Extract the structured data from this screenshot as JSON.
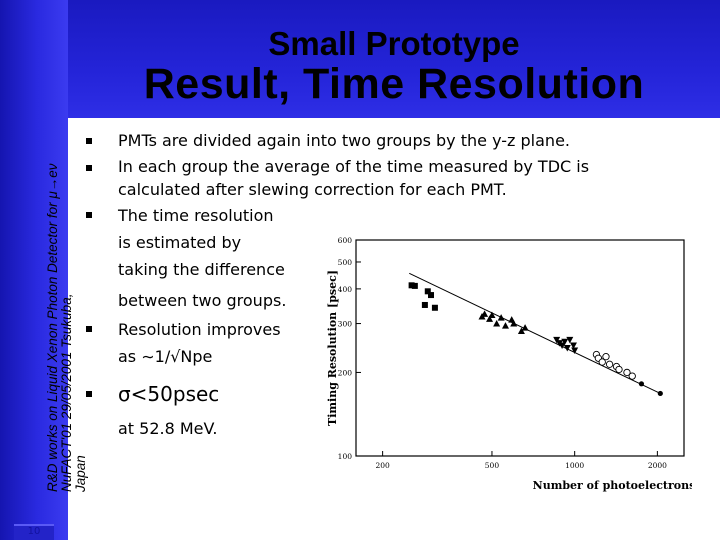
{
  "sidebar": {
    "footer_text": "R&D works on Liquid Xenon Photon Detector for μ→eν\nNuFACT'01  29/05/2001 Tsukuba,\nJapan",
    "page_number": "10"
  },
  "header": {
    "title_line1": "Small Prototype",
    "title_line2": "Result, Time Resolution"
  },
  "bullets": [
    {
      "lines": [
        "PMTs are divided again into two groups by the y-z plane."
      ]
    },
    {
      "lines": [
        "In each group the average of the time measured by TDC is",
        "calculated after slewing correction for each PMT."
      ]
    },
    {
      "lines": [
        "The time resolution",
        "is estimated by",
        "taking the difference",
        "between two groups."
      ]
    },
    {
      "lines": [
        "Resolution improves",
        "as ∼1/√Npe"
      ]
    },
    {
      "lines": [
        "σ<50psec",
        "at 52.8 MeV."
      ]
    }
  ],
  "chart_data": {
    "type": "scatter",
    "xscale": "log",
    "yscale": "log",
    "xlabel": "Number of photoelectrons",
    "ylabel": "Timing Resolution [psec]",
    "xlim": [
      160,
      2500
    ],
    "ylim": [
      100,
      600
    ],
    "xticks": [
      200,
      500,
      1000,
      2000
    ],
    "yticks": [
      100,
      200,
      300,
      400,
      500,
      600
    ],
    "xtick_labels": [
      "200",
      "500",
      "1000",
      "2000"
    ],
    "ytick_labels": [
      "100",
      "200",
      "300",
      "400",
      "500",
      "600"
    ],
    "fit_line": {
      "x": [
        250,
        2050
      ],
      "y": [
        455,
        168
      ]
    },
    "series": [
      {
        "name": "squares",
        "marker": "square",
        "points": [
          [
            255,
            412
          ],
          [
            262,
            410
          ],
          [
            292,
            392
          ],
          [
            300,
            380
          ],
          [
            285,
            350
          ],
          [
            310,
            342
          ]
        ]
      },
      {
        "name": "triangles",
        "marker": "triangle",
        "points": [
          [
            460,
            318
          ],
          [
            470,
            325
          ],
          [
            490,
            312
          ],
          [
            500,
            322
          ],
          [
            520,
            300
          ],
          [
            540,
            315
          ],
          [
            560,
            295
          ],
          [
            600,
            300
          ],
          [
            590,
            310
          ],
          [
            640,
            282
          ],
          [
            660,
            290
          ]
        ]
      },
      {
        "name": "inverted triangles",
        "marker": "invtriangle",
        "points": [
          [
            860,
            262
          ],
          [
            880,
            255
          ],
          [
            900,
            250
          ],
          [
            920,
            258
          ],
          [
            940,
            245
          ],
          [
            960,
            262
          ],
          [
            990,
            250
          ],
          [
            1000,
            240
          ]
        ]
      },
      {
        "name": "open markers",
        "marker": "open",
        "points": [
          [
            1200,
            232
          ],
          [
            1220,
            225
          ],
          [
            1260,
            218
          ],
          [
            1300,
            228
          ],
          [
            1340,
            214
          ],
          [
            1420,
            210
          ],
          [
            1450,
            205
          ],
          [
            1550,
            200
          ],
          [
            1620,
            194
          ]
        ]
      },
      {
        "name": "filled circles",
        "marker": "circle",
        "points": [
          [
            1750,
            182
          ],
          [
            2050,
            168
          ]
        ]
      }
    ]
  }
}
